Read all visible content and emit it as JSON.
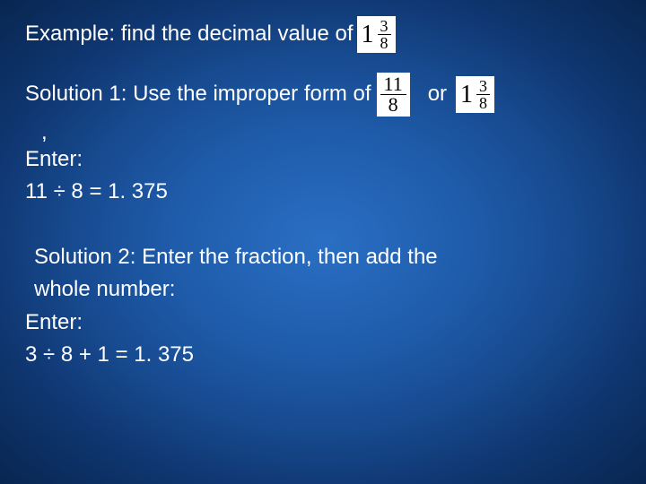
{
  "example": {
    "label": "Example:  find the decimal value of",
    "fraction": {
      "whole": "1",
      "num": "3",
      "den": "8"
    }
  },
  "solution1": {
    "label_before": "Solution 1: Use the improper form of",
    "improper": {
      "num": "11",
      "den": "8"
    },
    "or": "or",
    "mixed": {
      "whole": "1",
      "num": "3",
      "den": "8"
    },
    "comma": ",",
    "enter": "Enter:",
    "calc": "11 ÷ 8 =   1. 375"
  },
  "solution2": {
    "heading": "Solution 2: Enter the fraction, then add the",
    "heading2": "whole number:",
    "enter": "Enter:",
    "calc": "3 ÷ 8 + 1 =  1. 375"
  },
  "colors": {
    "text": "#ffffff",
    "frac_bg": "#ffffff",
    "frac_text": "#000000",
    "bg_center": "#2a6fc4",
    "bg_edge": "#082650"
  },
  "typography": {
    "body_font": "Verdana",
    "body_size_pt": 18,
    "frac_font": "Times New Roman"
  }
}
